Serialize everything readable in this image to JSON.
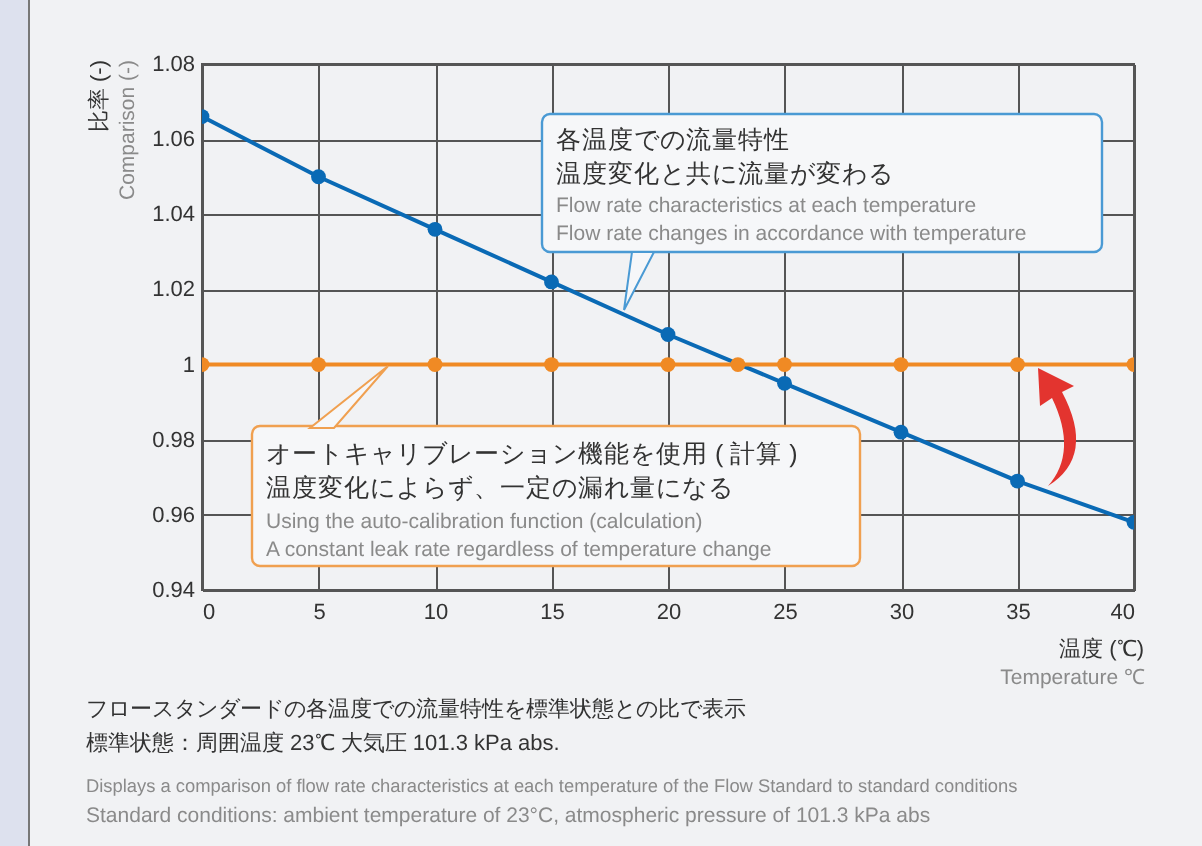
{
  "chart_data": {
    "type": "line",
    "xlabel": "温度 (℃)\nTemperature ℃",
    "ylabel": "比率 (-)\nComparison (-)",
    "xlim": [
      0,
      40
    ],
    "xticks": [
      0,
      5,
      10,
      15,
      20,
      25,
      30,
      35,
      40
    ],
    "ylim": [
      0.94,
      1.08
    ],
    "yticks": [
      0.94,
      0.96,
      0.98,
      1,
      1.02,
      1.04,
      1.06,
      1.08
    ],
    "grid": true,
    "marker": "circle",
    "line_style": "solid",
    "series": [
      {
        "color": "#0a6ab5",
        "x": [
          0,
          5,
          10,
          15,
          20,
          25,
          30,
          35,
          40
        ],
        "values": [
          1.066,
          1.05,
          1.036,
          1.022,
          1.008,
          0.995,
          0.982,
          0.969,
          0.958
        ]
      },
      {
        "color": "#f08a24",
        "x": [
          0,
          5,
          10,
          15,
          20,
          23,
          25,
          30,
          35,
          40
        ],
        "values": [
          1,
          1,
          1,
          1,
          1,
          1,
          1,
          1,
          1,
          1
        ]
      }
    ],
    "annotations": [
      "各温度での流量特性",
      "温度変化と共に流量が変わる",
      "Flow rate characteristics at each temperature",
      "Flow rate changes in accordance with temperature",
      "オートキャリブレーション機能を使用 ( 計算 )",
      "温度変化によらず、一定の漏れ量になる",
      "Using the auto-calibration function (calculation)",
      "A constant leak rate regardless of temperature change",
      "フロースタンダードの各温度での流量特性を標準状態との比で表示",
      "標準状態：周囲温度 23℃ 大気圧 101.3 kPa abs.",
      "Displays a comparison of flow rate characteristics at each temperature of the Flow Standard to standard conditions",
      "Standard conditions: ambient temperature of 23°C, atmospheric pressure of 101.3 kPa abs"
    ]
  }
}
